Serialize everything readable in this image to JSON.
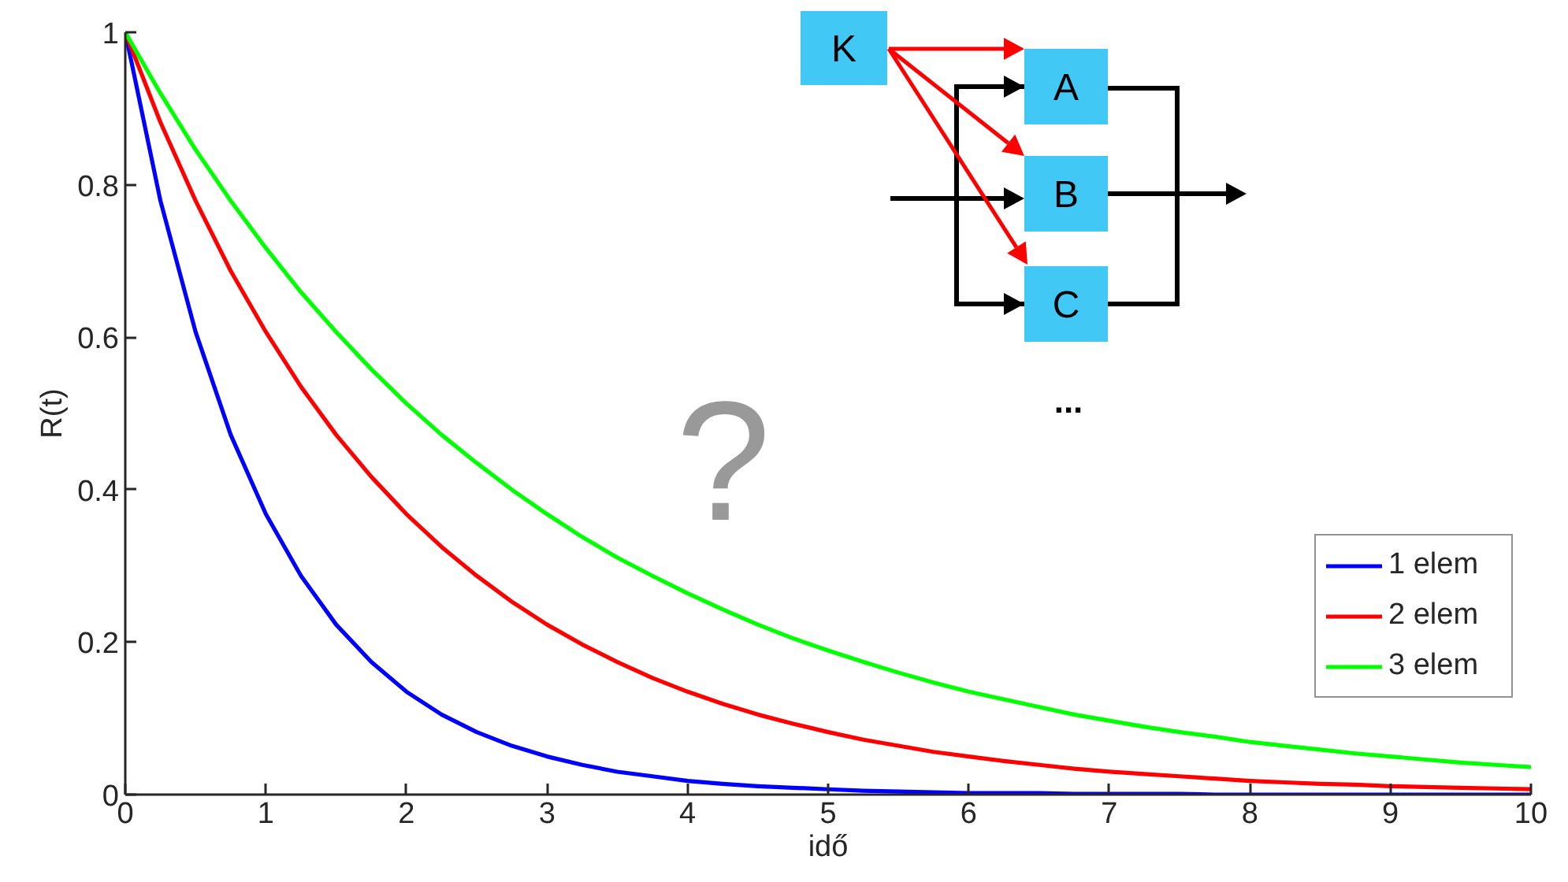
{
  "chart_data": {
    "type": "line",
    "xlabel": "idő",
    "ylabel": "R(t)",
    "x": [
      0,
      0.25,
      0.5,
      0.75,
      1,
      1.25,
      1.5,
      1.75,
      2,
      2.25,
      2.5,
      2.75,
      3,
      3.25,
      3.5,
      3.75,
      4,
      4.25,
      4.5,
      4.75,
      5,
      5.25,
      5.5,
      5.75,
      6,
      6.25,
      6.5,
      6.75,
      7,
      7.25,
      7.5,
      7.75,
      8,
      8.25,
      8.5,
      8.75,
      9,
      9.25,
      9.5,
      9.75,
      10
    ],
    "series": [
      {
        "name": "1 elem",
        "color": "#0000ff",
        "values": [
          1,
          0.779,
          0.607,
          0.472,
          0.368,
          0.287,
          0.223,
          0.174,
          0.135,
          0.105,
          0.082,
          0.064,
          0.05,
          0.039,
          0.03,
          0.024,
          0.018,
          0.014,
          0.011,
          0.009,
          0.007,
          0.005,
          0.004,
          0.003,
          0.002,
          0.002,
          0.002,
          0.001,
          0.001,
          0.001,
          0.001,
          0,
          0,
          0,
          0,
          0,
          0,
          0,
          0,
          0,
          0
        ]
      },
      {
        "name": "2 elem",
        "color": "#ff0000",
        "values": [
          1,
          0.882,
          0.779,
          0.687,
          0.607,
          0.535,
          0.472,
          0.417,
          0.368,
          0.325,
          0.287,
          0.253,
          0.223,
          0.197,
          0.174,
          0.153,
          0.135,
          0.119,
          0.105,
          0.093,
          0.082,
          0.072,
          0.064,
          0.056,
          0.05,
          0.044,
          0.039,
          0.034,
          0.03,
          0.027,
          0.024,
          0.021,
          0.018,
          0.016,
          0.014,
          0.013,
          0.011,
          0.01,
          0.009,
          0.008,
          0.007
        ]
      },
      {
        "name": "3 elem",
        "color": "#00ff00",
        "values": [
          1,
          0.92,
          0.846,
          0.779,
          0.717,
          0.659,
          0.607,
          0.558,
          0.513,
          0.472,
          0.435,
          0.4,
          0.368,
          0.338,
          0.311,
          0.287,
          0.264,
          0.243,
          0.223,
          0.205,
          0.189,
          0.174,
          0.16,
          0.147,
          0.135,
          0.125,
          0.115,
          0.105,
          0.097,
          0.089,
          0.082,
          0.076,
          0.069,
          0.064,
          0.059,
          0.054,
          0.05,
          0.046,
          0.042,
          0.039,
          0.036
        ]
      }
    ],
    "xlim": [
      0,
      10
    ],
    "ylim": [
      0,
      1
    ],
    "xticks": [
      0,
      1,
      2,
      3,
      4,
      5,
      6,
      7,
      8,
      9,
      10
    ],
    "yticks": [
      0,
      0.2,
      0.4,
      0.6,
      0.8,
      1
    ],
    "grid": false,
    "legend": "bottom right",
    "line_style": "solid",
    "annotations": [
      "?",
      "K",
      "A",
      "B",
      "C",
      "..."
    ]
  }
}
